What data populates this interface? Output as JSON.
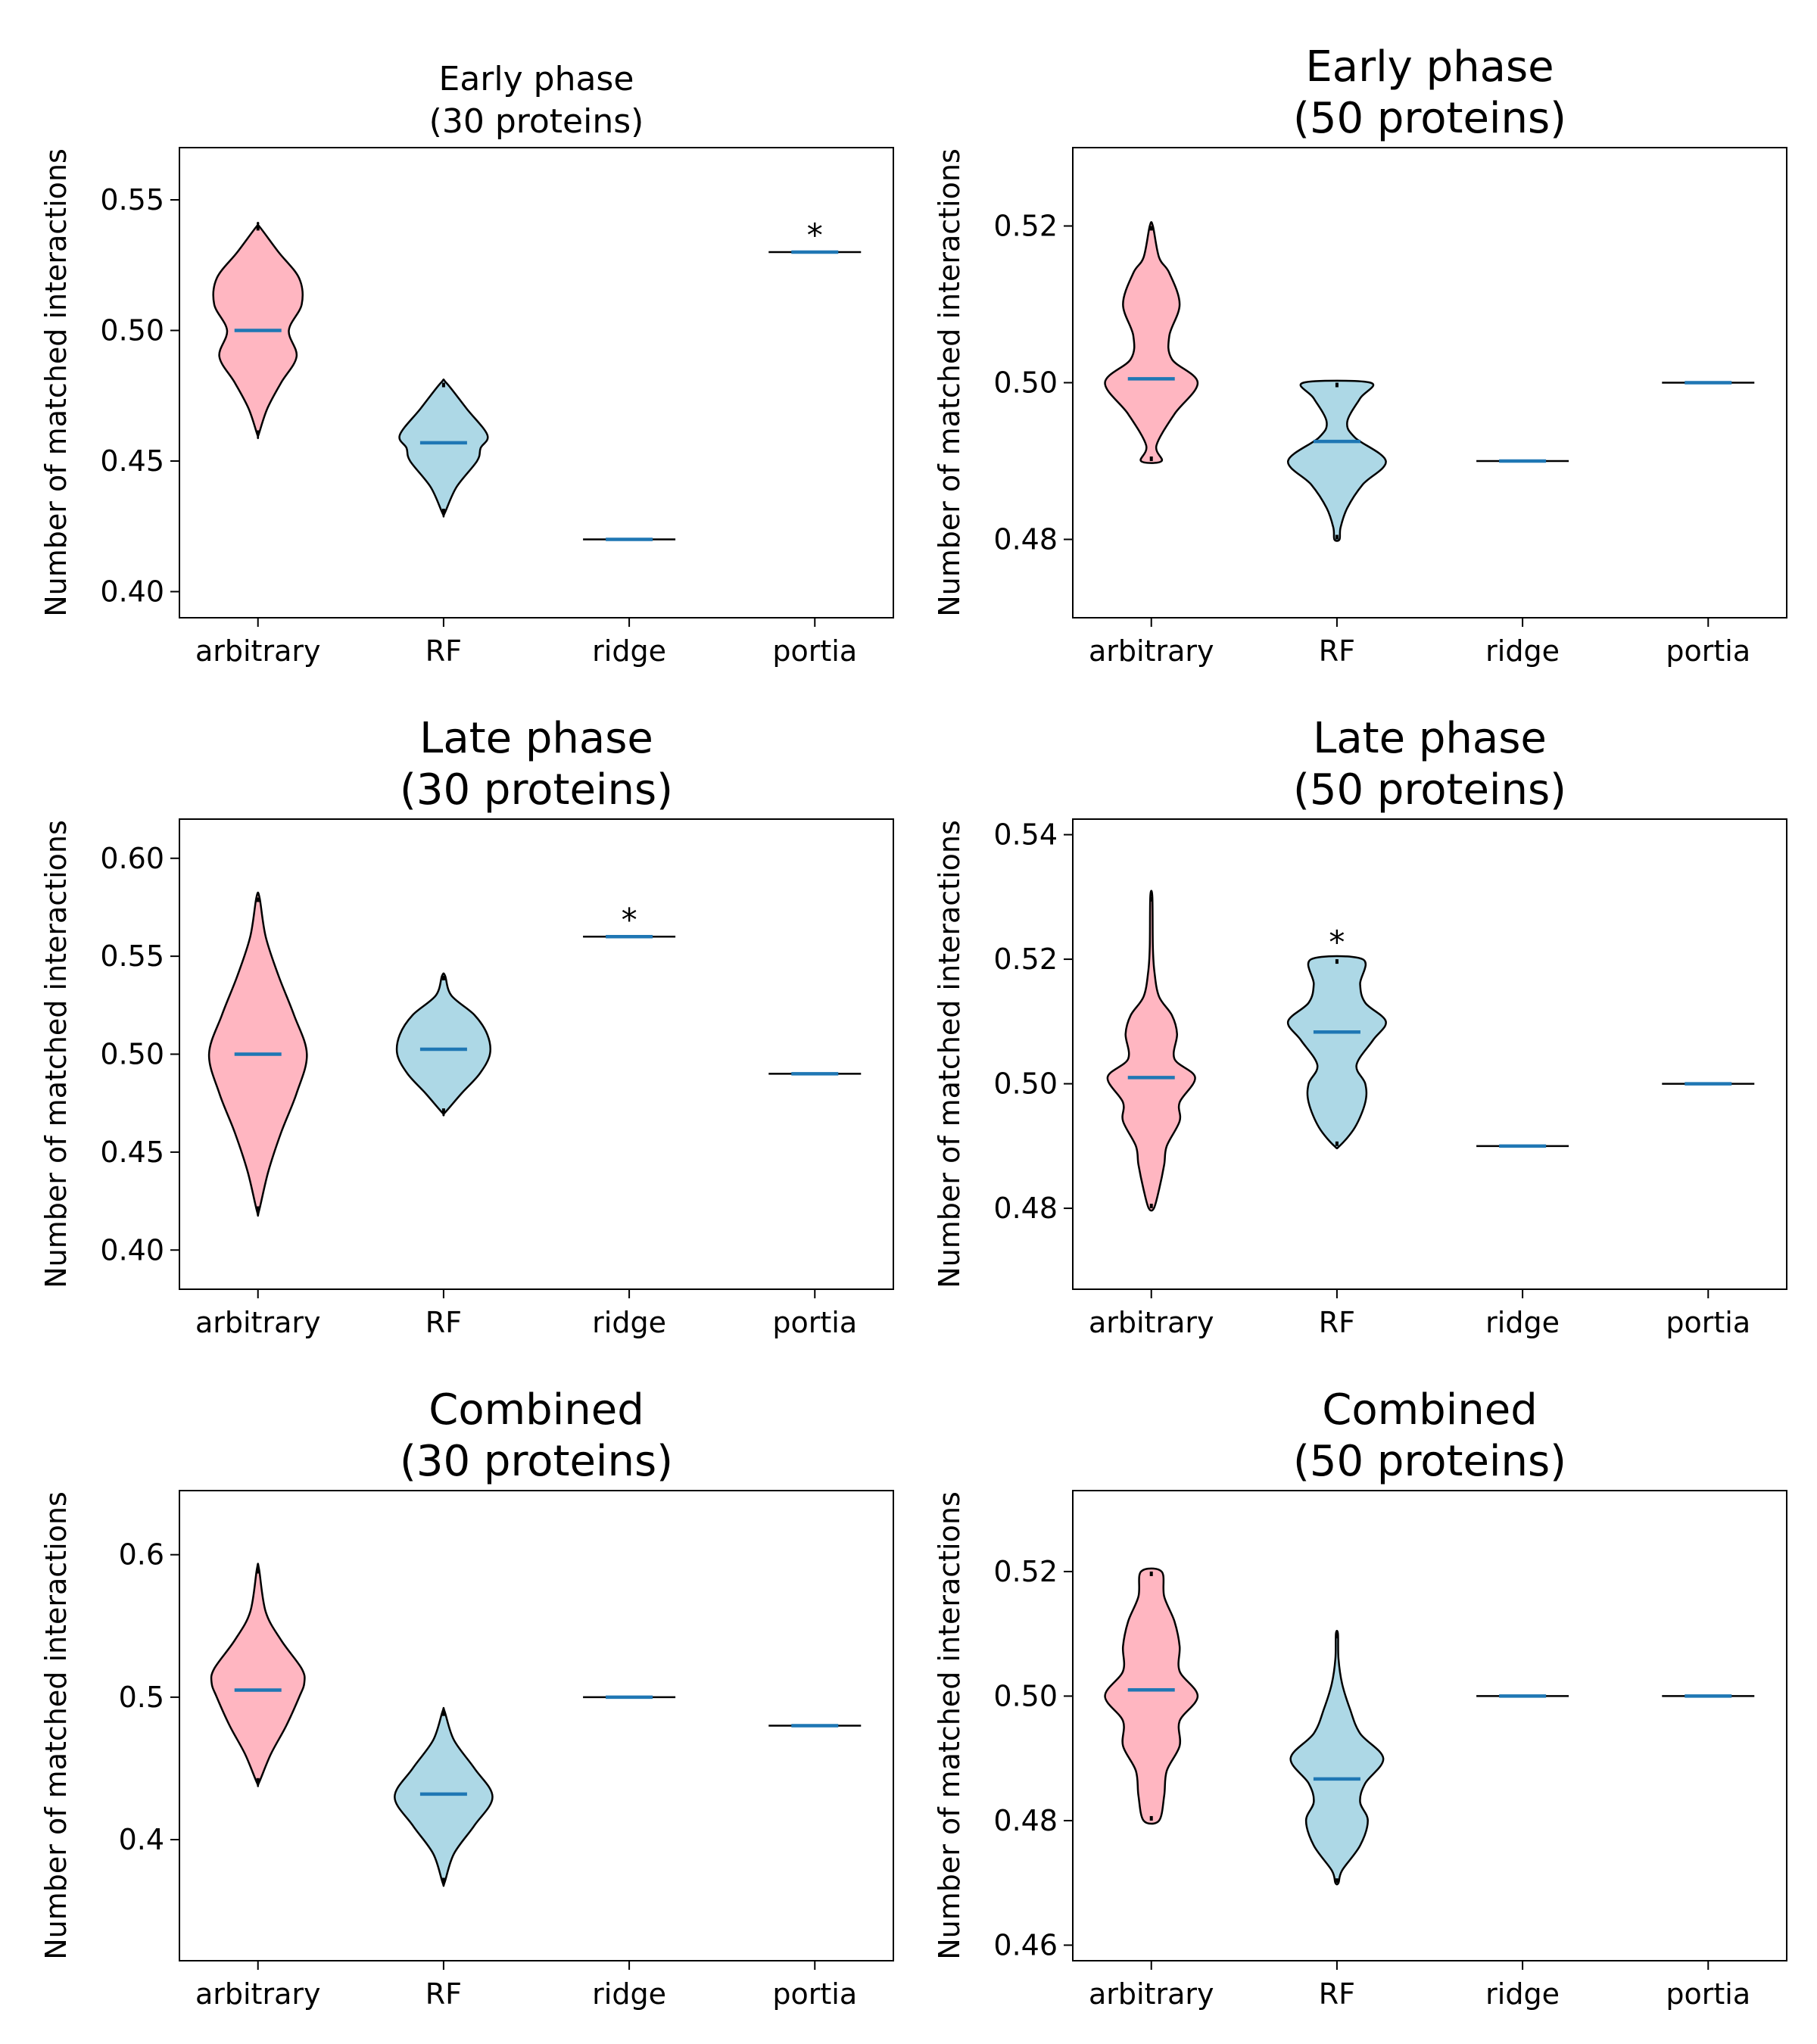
{
  "chart_data": [
    {
      "type": "violin",
      "title_lines": [
        "Early phase",
        "(30 proteins)"
      ],
      "title_size": "small",
      "ylabel": "Number of matched interactions",
      "categories": [
        "arbitrary",
        "RF",
        "ridge",
        "portia"
      ],
      "ylim": [
        0.39,
        0.57
      ],
      "yticks": [
        0.4,
        0.45,
        0.5,
        0.55
      ],
      "ytick_labels": [
        "0.40",
        "0.45",
        "0.50",
        "0.55"
      ],
      "series": [
        {
          "category": "arbitrary",
          "color": "#ffb6c1",
          "min": 0.46,
          "max": 0.54,
          "mean": 0.5,
          "profile": [
            [
              0.46,
              0.01
            ],
            [
              0.47,
              0.18
            ],
            [
              0.48,
              0.45
            ],
            [
              0.49,
              0.75
            ],
            [
              0.5,
              0.6
            ],
            [
              0.51,
              0.85
            ],
            [
              0.52,
              0.8
            ],
            [
              0.53,
              0.4
            ],
            [
              0.54,
              0.02
            ]
          ]
        },
        {
          "category": "RF",
          "color": "#add8e6",
          "min": 0.43,
          "max": 0.48,
          "mean": 0.457,
          "profile": [
            [
              0.43,
              0.02
            ],
            [
              0.44,
              0.25
            ],
            [
              0.45,
              0.65
            ],
            [
              0.455,
              0.72
            ],
            [
              0.46,
              0.85
            ],
            [
              0.47,
              0.45
            ],
            [
              0.48,
              0.05
            ]
          ]
        },
        {
          "category": "ridge",
          "color": "#add8e6",
          "min": 0.42,
          "max": 0.42,
          "mean": 0.42,
          "profile": []
        },
        {
          "category": "portia",
          "color": "#add8e6",
          "min": 0.53,
          "max": 0.53,
          "mean": 0.53,
          "profile": []
        }
      ],
      "annotations": [
        {
          "category": "portia",
          "text": "*",
          "y": 0.53
        }
      ]
    },
    {
      "type": "violin",
      "title_lines": [
        "Early phase",
        "(50 proteins)"
      ],
      "title_size": "large",
      "ylabel": "Number of matched interactions",
      "categories": [
        "arbitrary",
        "RF",
        "ridge",
        "portia"
      ],
      "ylim": [
        0.47,
        0.53
      ],
      "yticks": [
        0.48,
        0.5,
        0.52
      ],
      "ytick_labels": [
        "0.48",
        "0.50",
        "0.52"
      ],
      "series": [
        {
          "category": "arbitrary",
          "color": "#ffb6c1",
          "min": 0.49,
          "max": 0.52,
          "mean": 0.5005,
          "profile": [
            [
              0.49,
              0.2
            ],
            [
              0.492,
              0.1
            ],
            [
              0.496,
              0.45
            ],
            [
              0.5,
              0.9
            ],
            [
              0.503,
              0.4
            ],
            [
              0.506,
              0.35
            ],
            [
              0.51,
              0.55
            ],
            [
              0.514,
              0.35
            ],
            [
              0.516,
              0.15
            ],
            [
              0.52,
              0.03
            ]
          ]
        },
        {
          "category": "RF",
          "color": "#add8e6",
          "min": 0.48,
          "max": 0.5,
          "mean": 0.4925,
          "profile": [
            [
              0.48,
              0.05
            ],
            [
              0.4815,
              0.07
            ],
            [
              0.484,
              0.2
            ],
            [
              0.487,
              0.5
            ],
            [
              0.49,
              0.95
            ],
            [
              0.493,
              0.35
            ],
            [
              0.495,
              0.2
            ],
            [
              0.498,
              0.45
            ],
            [
              0.5,
              0.65
            ]
          ]
        },
        {
          "category": "ridge",
          "color": "#add8e6",
          "min": 0.49,
          "max": 0.49,
          "mean": 0.49,
          "profile": []
        },
        {
          "category": "portia",
          "color": "#add8e6",
          "min": 0.5,
          "max": 0.5,
          "mean": 0.5,
          "profile": []
        }
      ],
      "annotations": []
    },
    {
      "type": "violin",
      "title_lines": [
        "Late phase",
        "(30 proteins)"
      ],
      "title_size": "large",
      "ylabel": "Number of matched interactions",
      "categories": [
        "arbitrary",
        "RF",
        "ridge",
        "portia"
      ],
      "ylim": [
        0.38,
        0.62
      ],
      "yticks": [
        0.4,
        0.45,
        0.5,
        0.55,
        0.6
      ],
      "ytick_labels": [
        "0.40",
        "0.45",
        "0.50",
        "0.55",
        "0.60"
      ],
      "series": [
        {
          "category": "arbitrary",
          "color": "#ffb6c1",
          "min": 0.42,
          "max": 0.58,
          "mean": 0.5,
          "profile": [
            [
              0.42,
              0.02
            ],
            [
              0.44,
              0.2
            ],
            [
              0.46,
              0.45
            ],
            [
              0.48,
              0.75
            ],
            [
              0.5,
              0.95
            ],
            [
              0.52,
              0.7
            ],
            [
              0.54,
              0.4
            ],
            [
              0.56,
              0.15
            ],
            [
              0.58,
              0.03
            ]
          ]
        },
        {
          "category": "RF",
          "color": "#add8e6",
          "min": 0.47,
          "max": 0.54,
          "mean": 0.5025,
          "profile": [
            [
              0.47,
              0.02
            ],
            [
              0.48,
              0.35
            ],
            [
              0.49,
              0.7
            ],
            [
              0.5,
              0.9
            ],
            [
              0.51,
              0.85
            ],
            [
              0.52,
              0.6
            ],
            [
              0.53,
              0.15
            ],
            [
              0.54,
              0.03
            ]
          ]
        },
        {
          "category": "ridge",
          "color": "#add8e6",
          "min": 0.56,
          "max": 0.56,
          "mean": 0.56,
          "profile": []
        },
        {
          "category": "portia",
          "color": "#add8e6",
          "min": 0.49,
          "max": 0.49,
          "mean": 0.49,
          "profile": []
        }
      ],
      "annotations": [
        {
          "category": "ridge",
          "text": "*",
          "y": 0.56
        }
      ]
    },
    {
      "type": "violin",
      "title_lines": [
        "Late phase",
        "(50 proteins)"
      ],
      "title_size": "large",
      "ylabel": "Number of matched interactions",
      "categories": [
        "arbitrary",
        "RF",
        "ridge",
        "portia"
      ],
      "ylim": [
        0.467,
        0.5425
      ],
      "yticks": [
        0.48,
        0.5,
        0.52,
        0.54
      ],
      "ytick_labels": [
        "0.48",
        "0.50",
        "0.52",
        "0.54"
      ],
      "series": [
        {
          "category": "arbitrary",
          "color": "#ffb6c1",
          "min": 0.48,
          "max": 0.53,
          "mean": 0.501,
          "profile": [
            [
              0.48,
              0.05
            ],
            [
              0.483,
              0.15
            ],
            [
              0.487,
              0.25
            ],
            [
              0.49,
              0.3
            ],
            [
              0.494,
              0.55
            ],
            [
              0.497,
              0.55
            ],
            [
              0.501,
              0.85
            ],
            [
              0.504,
              0.45
            ],
            [
              0.508,
              0.5
            ],
            [
              0.511,
              0.4
            ],
            [
              0.514,
              0.15
            ],
            [
              0.518,
              0.06
            ],
            [
              0.522,
              0.03
            ],
            [
              0.53,
              0.02
            ]
          ]
        },
        {
          "category": "RF",
          "color": "#add8e6",
          "min": 0.49,
          "max": 0.52,
          "mean": 0.5083,
          "profile": [
            [
              0.49,
              0.05
            ],
            [
              0.493,
              0.35
            ],
            [
              0.497,
              0.55
            ],
            [
              0.5,
              0.55
            ],
            [
              0.503,
              0.38
            ],
            [
              0.507,
              0.7
            ],
            [
              0.51,
              0.95
            ],
            [
              0.513,
              0.55
            ],
            [
              0.516,
              0.45
            ],
            [
              0.52,
              0.5
            ]
          ]
        },
        {
          "category": "ridge",
          "color": "#add8e6",
          "min": 0.49,
          "max": 0.49,
          "mean": 0.49,
          "profile": []
        },
        {
          "category": "portia",
          "color": "#add8e6",
          "min": 0.5,
          "max": 0.5,
          "mean": 0.5,
          "profile": []
        }
      ],
      "annotations": [
        {
          "category": "RF",
          "text": "*",
          "y": 0.52
        }
      ]
    },
    {
      "type": "violin",
      "title_lines": [
        "Combined",
        "(30 proteins)"
      ],
      "title_size": "large",
      "ylabel": "Number of matched interactions",
      "categories": [
        "arbitrary",
        "RF",
        "ridge",
        "portia"
      ],
      "ylim": [
        0.315,
        0.645
      ],
      "yticks": [
        0.4,
        0.5,
        0.6
      ],
      "ytick_labels": [
        "0.4",
        "0.5",
        "0.6"
      ],
      "series": [
        {
          "category": "arbitrary",
          "color": "#ffb6c1",
          "min": 0.44,
          "max": 0.59,
          "mean": 0.505,
          "profile": [
            [
              0.44,
              0.02
            ],
            [
              0.46,
              0.25
            ],
            [
              0.48,
              0.55
            ],
            [
              0.5,
              0.8
            ],
            [
              0.51,
              0.9
            ],
            [
              0.52,
              0.85
            ],
            [
              0.54,
              0.45
            ],
            [
              0.56,
              0.15
            ],
            [
              0.59,
              0.02
            ]
          ]
        },
        {
          "category": "RF",
          "color": "#add8e6",
          "min": 0.37,
          "max": 0.49,
          "mean": 0.432,
          "profile": [
            [
              0.37,
              0.02
            ],
            [
              0.39,
              0.2
            ],
            [
              0.41,
              0.6
            ],
            [
              0.43,
              0.95
            ],
            [
              0.45,
              0.6
            ],
            [
              0.47,
              0.2
            ],
            [
              0.49,
              0.02
            ]
          ]
        },
        {
          "category": "ridge",
          "color": "#add8e6",
          "min": 0.5,
          "max": 0.5,
          "mean": 0.5,
          "profile": []
        },
        {
          "category": "portia",
          "color": "#add8e6",
          "min": 0.48,
          "max": 0.48,
          "mean": 0.48,
          "profile": []
        }
      ],
      "annotations": []
    },
    {
      "type": "violin",
      "title_lines": [
        "Combined",
        "(50 proteins)"
      ],
      "title_size": "large",
      "ylabel": "Number of matched interactions",
      "categories": [
        "arbitrary",
        "RF",
        "ridge",
        "portia"
      ],
      "ylim": [
        0.4575,
        0.533
      ],
      "yticks": [
        0.46,
        0.48,
        0.5,
        0.52
      ],
      "ytick_labels": [
        "0.46",
        "0.48",
        "0.50",
        "0.52"
      ],
      "series": [
        {
          "category": "arbitrary",
          "color": "#ffb6c1",
          "min": 0.48,
          "max": 0.52,
          "mean": 0.501,
          "profile": [
            [
              0.48,
              0.15
            ],
            [
              0.484,
              0.25
            ],
            [
              0.488,
              0.3
            ],
            [
              0.492,
              0.55
            ],
            [
              0.496,
              0.55
            ],
            [
              0.5,
              0.9
            ],
            [
              0.504,
              0.55
            ],
            [
              0.508,
              0.55
            ],
            [
              0.512,
              0.45
            ],
            [
              0.516,
              0.25
            ],
            [
              0.52,
              0.2
            ]
          ]
        },
        {
          "category": "RF",
          "color": "#add8e6",
          "min": 0.47,
          "max": 0.51,
          "mean": 0.4867,
          "profile": [
            [
              0.47,
              0.03
            ],
            [
              0.472,
              0.1
            ],
            [
              0.476,
              0.45
            ],
            [
              0.48,
              0.6
            ],
            [
              0.483,
              0.45
            ],
            [
              0.486,
              0.55
            ],
            [
              0.49,
              0.9
            ],
            [
              0.494,
              0.45
            ],
            [
              0.498,
              0.25
            ],
            [
              0.502,
              0.1
            ],
            [
              0.506,
              0.03
            ],
            [
              0.51,
              0.02
            ]
          ]
        },
        {
          "category": "ridge",
          "color": "#add8e6",
          "min": 0.5,
          "max": 0.5,
          "mean": 0.5,
          "profile": []
        },
        {
          "category": "portia",
          "color": "#add8e6",
          "min": 0.5,
          "max": 0.5,
          "mean": 0.5,
          "profile": []
        }
      ],
      "annotations": []
    }
  ],
  "colors": {
    "mean_line": "#1f77b4",
    "outline": "#000000"
  }
}
